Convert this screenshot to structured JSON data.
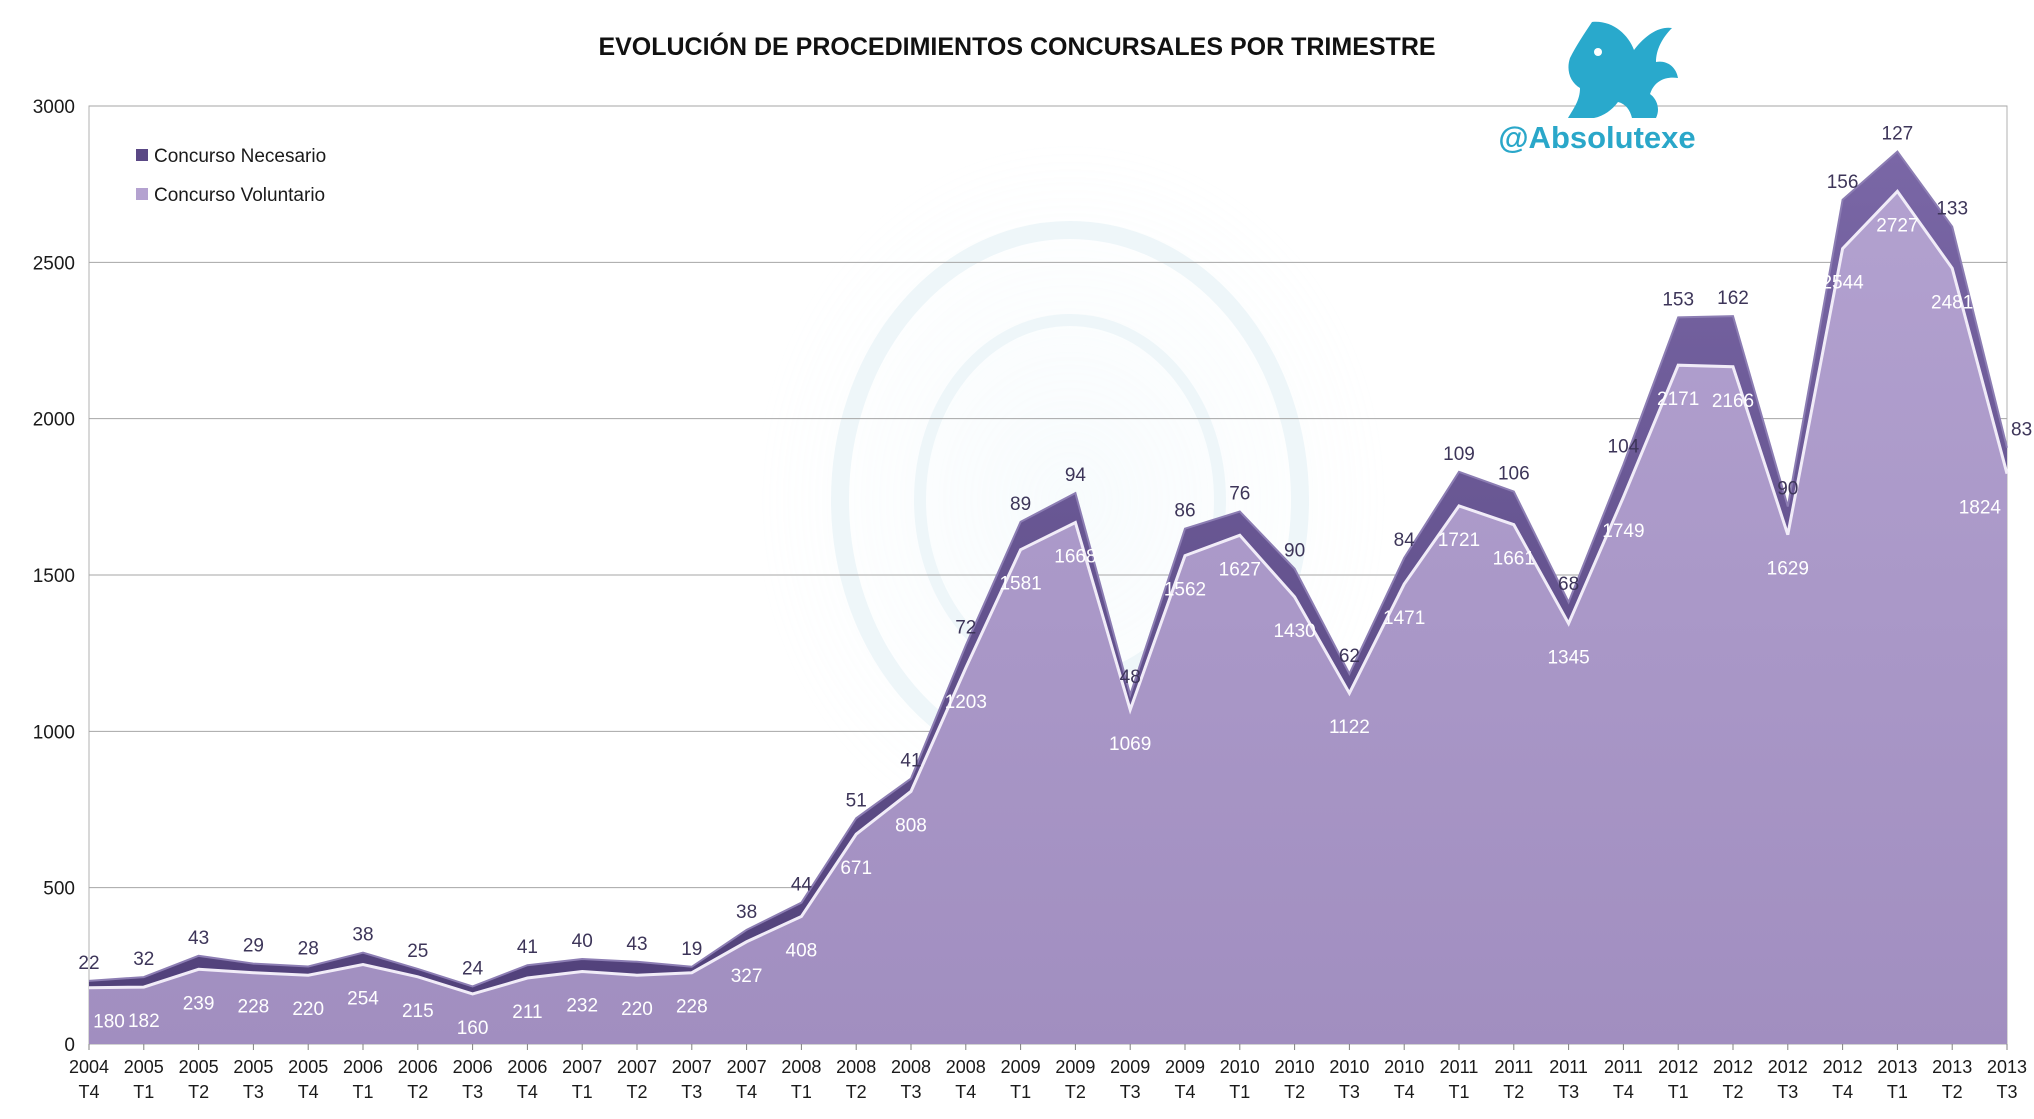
{
  "chart_data": {
    "type": "area",
    "title": "EVOLUCIÓN DE PROCEDIMIENTOS CONCURSALES POR TRIMESTRE",
    "xlabel": "",
    "ylabel": "",
    "ylim": [
      0,
      3000
    ],
    "yticks": [
      "0",
      "500",
      "1000",
      "1500",
      "2000",
      "2500",
      "3000"
    ],
    "stacked": true,
    "grid": true,
    "legend_position": "top-left",
    "watermark": "@Absolutexe",
    "categories": [
      {
        "year": "2004",
        "q": "T4"
      },
      {
        "year": "2005",
        "q": "T1"
      },
      {
        "year": "2005",
        "q": "T2"
      },
      {
        "year": "2005",
        "q": "T3"
      },
      {
        "year": "2005",
        "q": "T4"
      },
      {
        "year": "2006",
        "q": "T1"
      },
      {
        "year": "2006",
        "q": "T2"
      },
      {
        "year": "2006",
        "q": "T3"
      },
      {
        "year": "2006",
        "q": "T4"
      },
      {
        "year": "2007",
        "q": "T1"
      },
      {
        "year": "2007",
        "q": "T2"
      },
      {
        "year": "2007",
        "q": "T3"
      },
      {
        "year": "2007",
        "q": "T4"
      },
      {
        "year": "2008",
        "q": "T1"
      },
      {
        "year": "2008",
        "q": "T2"
      },
      {
        "year": "2008",
        "q": "T3"
      },
      {
        "year": "2008",
        "q": "T4"
      },
      {
        "year": "2009",
        "q": "T1"
      },
      {
        "year": "2009",
        "q": "T2"
      },
      {
        "year": "2009",
        "q": "T3"
      },
      {
        "year": "2009",
        "q": "T4"
      },
      {
        "year": "2010",
        "q": "T1"
      },
      {
        "year": "2010",
        "q": "T2"
      },
      {
        "year": "2010",
        "q": "T3"
      },
      {
        "year": "2010",
        "q": "T4"
      },
      {
        "year": "2011",
        "q": "T1"
      },
      {
        "year": "2011",
        "q": "T2"
      },
      {
        "year": "2011",
        "q": "T3"
      },
      {
        "year": "2011",
        "q": "T4"
      },
      {
        "year": "2012",
        "q": "T1"
      },
      {
        "year": "2012",
        "q": "T2"
      },
      {
        "year": "2012",
        "q": "T3"
      },
      {
        "year": "2012",
        "q": "T4"
      },
      {
        "year": "2013",
        "q": "T1"
      },
      {
        "year": "2013",
        "q": "T2"
      },
      {
        "year": "2013",
        "q": "T3"
      }
    ],
    "series": [
      {
        "name": "Concurso Voluntario",
        "color": "#b9a8d1",
        "values": [
          180,
          182,
          239,
          228,
          220,
          254,
          215,
          160,
          211,
          232,
          220,
          228,
          327,
          408,
          671,
          808,
          1203,
          1581,
          1668,
          1069,
          1562,
          1627,
          1430,
          1122,
          1471,
          1721,
          1661,
          1345,
          1749,
          2171,
          2166,
          1629,
          2544,
          2727,
          2481,
          1824
        ]
      },
      {
        "name": "Concurso Necesario",
        "color": "#6b5a93",
        "values": [
          22,
          32,
          43,
          29,
          28,
          38,
          25,
          24,
          41,
          40,
          43,
          19,
          38,
          44,
          51,
          41,
          72,
          89,
          94,
          48,
          86,
          76,
          90,
          62,
          84,
          109,
          106,
          68,
          104,
          153,
          162,
          90,
          156,
          127,
          133,
          83
        ]
      }
    ]
  }
}
